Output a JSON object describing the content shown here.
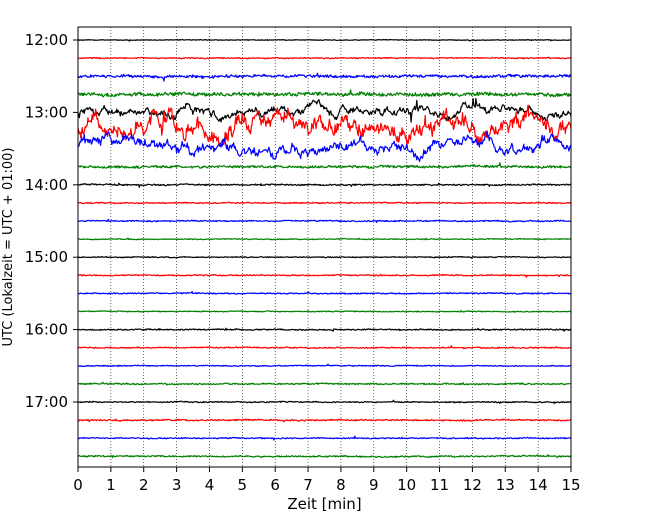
{
  "chart_data": {
    "type": "line",
    "title": "",
    "xlabel": "Zeit  [min]",
    "ylabel": "UTC (Lokalzeit = UTC + 01:00)",
    "xlim": [
      0,
      15
    ],
    "x_ticks": [
      0,
      1,
      2,
      3,
      4,
      5,
      6,
      7,
      8,
      9,
      10,
      11,
      12,
      13,
      14,
      15
    ],
    "y_ticks": [
      "12:00",
      "13:00",
      "14:00",
      "15:00",
      "16:00",
      "17:00"
    ],
    "grid": "vertical dotted",
    "colors": [
      "#000000",
      "#ff0000",
      "#0000ff",
      "#008000"
    ],
    "trace_interval_minutes": 15,
    "trace_start": "12:00",
    "trace_count": 24,
    "traces": [
      {
        "start": "12:00",
        "color": "#000000",
        "amplitude": 0.03
      },
      {
        "start": "12:15",
        "color": "#ff0000",
        "amplitude": 0.05
      },
      {
        "start": "12:30",
        "color": "#0000ff",
        "amplitude": 0.12
      },
      {
        "start": "12:45",
        "color": "#008000",
        "amplitude": 0.15
      },
      {
        "start": "13:00",
        "color": "#000000",
        "amplitude": 0.35
      },
      {
        "start": "13:15",
        "color": "#ff0000",
        "amplitude": 0.75
      },
      {
        "start": "13:30",
        "color": "#0000ff",
        "amplitude": 0.45
      },
      {
        "start": "13:45",
        "color": "#008000",
        "amplitude": 0.1
      },
      {
        "start": "14:00",
        "color": "#000000",
        "amplitude": 0.06
      },
      {
        "start": "14:15",
        "color": "#ff0000",
        "amplitude": 0.05
      },
      {
        "start": "14:30",
        "color": "#0000ff",
        "amplitude": 0.05
      },
      {
        "start": "14:45",
        "color": "#008000",
        "amplitude": 0.04
      },
      {
        "start": "15:00",
        "color": "#000000",
        "amplitude": 0.04
      },
      {
        "start": "15:15",
        "color": "#ff0000",
        "amplitude": 0.05
      },
      {
        "start": "15:30",
        "color": "#0000ff",
        "amplitude": 0.05
      },
      {
        "start": "15:45",
        "color": "#008000",
        "amplitude": 0.04
      },
      {
        "start": "16:00",
        "color": "#000000",
        "amplitude": 0.05
      },
      {
        "start": "16:15",
        "color": "#ff0000",
        "amplitude": 0.05
      },
      {
        "start": "16:30",
        "color": "#0000ff",
        "amplitude": 0.04
      },
      {
        "start": "16:45",
        "color": "#008000",
        "amplitude": 0.06
      },
      {
        "start": "17:00",
        "color": "#000000",
        "amplitude": 0.05
      },
      {
        "start": "17:15",
        "color": "#ff0000",
        "amplitude": 0.06
      },
      {
        "start": "17:30",
        "color": "#0000ff",
        "amplitude": 0.05
      },
      {
        "start": "17:45",
        "color": "#008000",
        "amplitude": 0.06
      }
    ]
  }
}
